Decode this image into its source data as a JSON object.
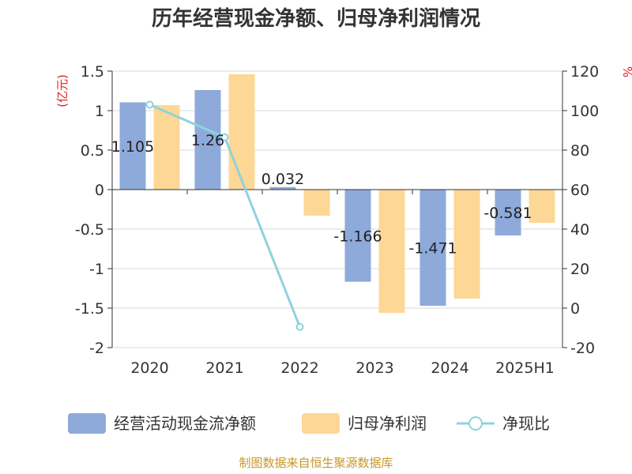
{
  "title": "历年经营现金净额、归母净利润情况",
  "source": "制图数据来自恒生聚源数据库",
  "chart_data": {
    "type": "bar",
    "categories": [
      "2020",
      "2021",
      "2022",
      "2023",
      "2024",
      "2025H1"
    ],
    "left_axis": {
      "unit": "(亿元)",
      "range": [
        -2,
        1.5
      ],
      "ticks": [
        "-2",
        "-1.5",
        "-1",
        "-0.5",
        "0",
        "0.5",
        "1",
        "1.5"
      ]
    },
    "right_axis": {
      "unit": "%",
      "range": [
        -20,
        120
      ],
      "ticks": [
        "-20",
        "0",
        "20",
        "40",
        "60",
        "80",
        "100",
        "120"
      ]
    },
    "series": [
      {
        "name": "经营活动现金流净额",
        "type": "bar",
        "axis": "left",
        "color": "#8eaadb",
        "values": [
          1.105,
          1.26,
          0.032,
          -1.166,
          -1.471,
          -0.581
        ],
        "labels": [
          "1.105",
          "1.26",
          "0.032",
          "-1.166",
          "-1.471",
          "-0.581"
        ]
      },
      {
        "name": "归母净利润",
        "type": "bar",
        "axis": "left",
        "color": "#fdd795",
        "values": [
          1.07,
          1.46,
          -0.33,
          -1.56,
          -1.38,
          -0.42
        ]
      },
      {
        "name": "净现比",
        "type": "line",
        "axis": "right",
        "color": "#8ed3da",
        "values": [
          103,
          86.5,
          -9.5,
          null,
          null,
          null
        ]
      }
    ],
    "grid": true,
    "legend": "bottom"
  }
}
